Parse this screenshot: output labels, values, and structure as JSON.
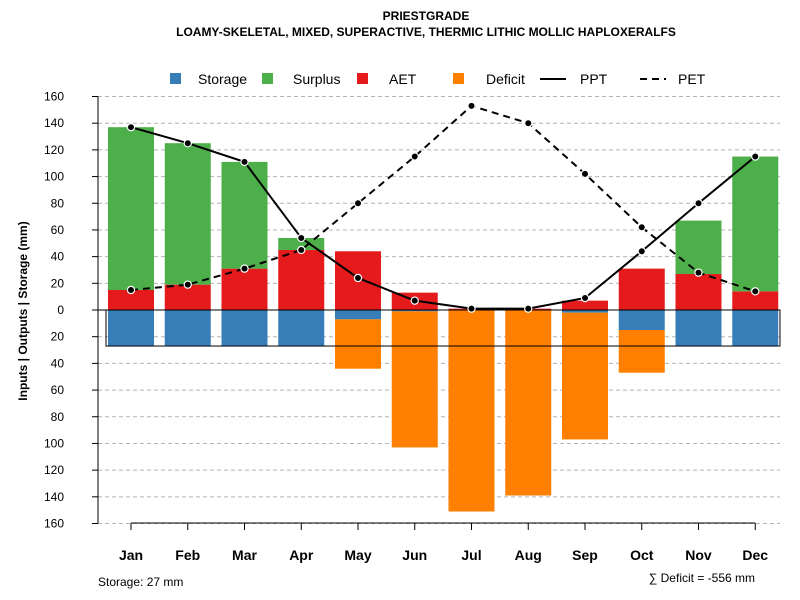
{
  "chart_data": {
    "type": "bar+line",
    "title": "PRIESTGRADE",
    "subtitle": "LOAMY-SKELETAL, MIXED, SUPERACTIVE, THERMIC LITHIC MOLLIC HAPLOXERALFS",
    "ylabel": "Inputs | Outputs | Storage    (mm)",
    "ylim": [
      -160,
      160
    ],
    "yticks": [
      160,
      140,
      120,
      100,
      80,
      60,
      40,
      20,
      0,
      20,
      40,
      60,
      80,
      100,
      120,
      140,
      160
    ],
    "categories": [
      "Jan",
      "Feb",
      "Mar",
      "Apr",
      "May",
      "Jun",
      "Jul",
      "Aug",
      "Sep",
      "Oct",
      "Nov",
      "Dec"
    ],
    "legend": {
      "position": "top",
      "items": [
        {
          "label": "Storage",
          "kind": "box",
          "color": "#377EB8"
        },
        {
          "label": "Surplus",
          "kind": "box",
          "color": "#4DAF4A"
        },
        {
          "label": "AET",
          "kind": "box",
          "color": "#E41A1C"
        },
        {
          "label": "Deficit",
          "kind": "box",
          "color": "#FF7F00"
        },
        {
          "label": "PPT",
          "kind": "solid"
        },
        {
          "label": "PET",
          "kind": "dashed"
        }
      ]
    },
    "series": [
      {
        "name": "AET",
        "color": "#E41A1C",
        "values": [
          15,
          19,
          31,
          45,
          44,
          13,
          1,
          1,
          7,
          31,
          27,
          14
        ]
      },
      {
        "name": "Surplus",
        "color": "#4DAF4A",
        "values": [
          122,
          106,
          80,
          9,
          0,
          0,
          0,
          0,
          0,
          0,
          40,
          101
        ]
      },
      {
        "name": "Storage",
        "color": "#377EB8",
        "values": [
          27,
          27,
          27,
          27,
          7,
          1,
          0,
          0,
          2,
          15,
          27,
          27
        ]
      },
      {
        "name": "Deficit",
        "color": "#FF7F00",
        "values": [
          0,
          0,
          0,
          0,
          37,
          102,
          151,
          139,
          95,
          32,
          0,
          0
        ]
      },
      {
        "name": "PPT",
        "style": "solid",
        "values": [
          137,
          125,
          111,
          54,
          24,
          7,
          1,
          1,
          9,
          44,
          80,
          115
        ]
      },
      {
        "name": "PET",
        "style": "dashed",
        "values": [
          15,
          19,
          31,
          45,
          80,
          115,
          153,
          140,
          102,
          62,
          28,
          14
        ]
      }
    ],
    "storage_capacity": 27,
    "footer_left": "Storage: 27 mm",
    "footer_right": "∑ Deficit = -556 mm"
  }
}
